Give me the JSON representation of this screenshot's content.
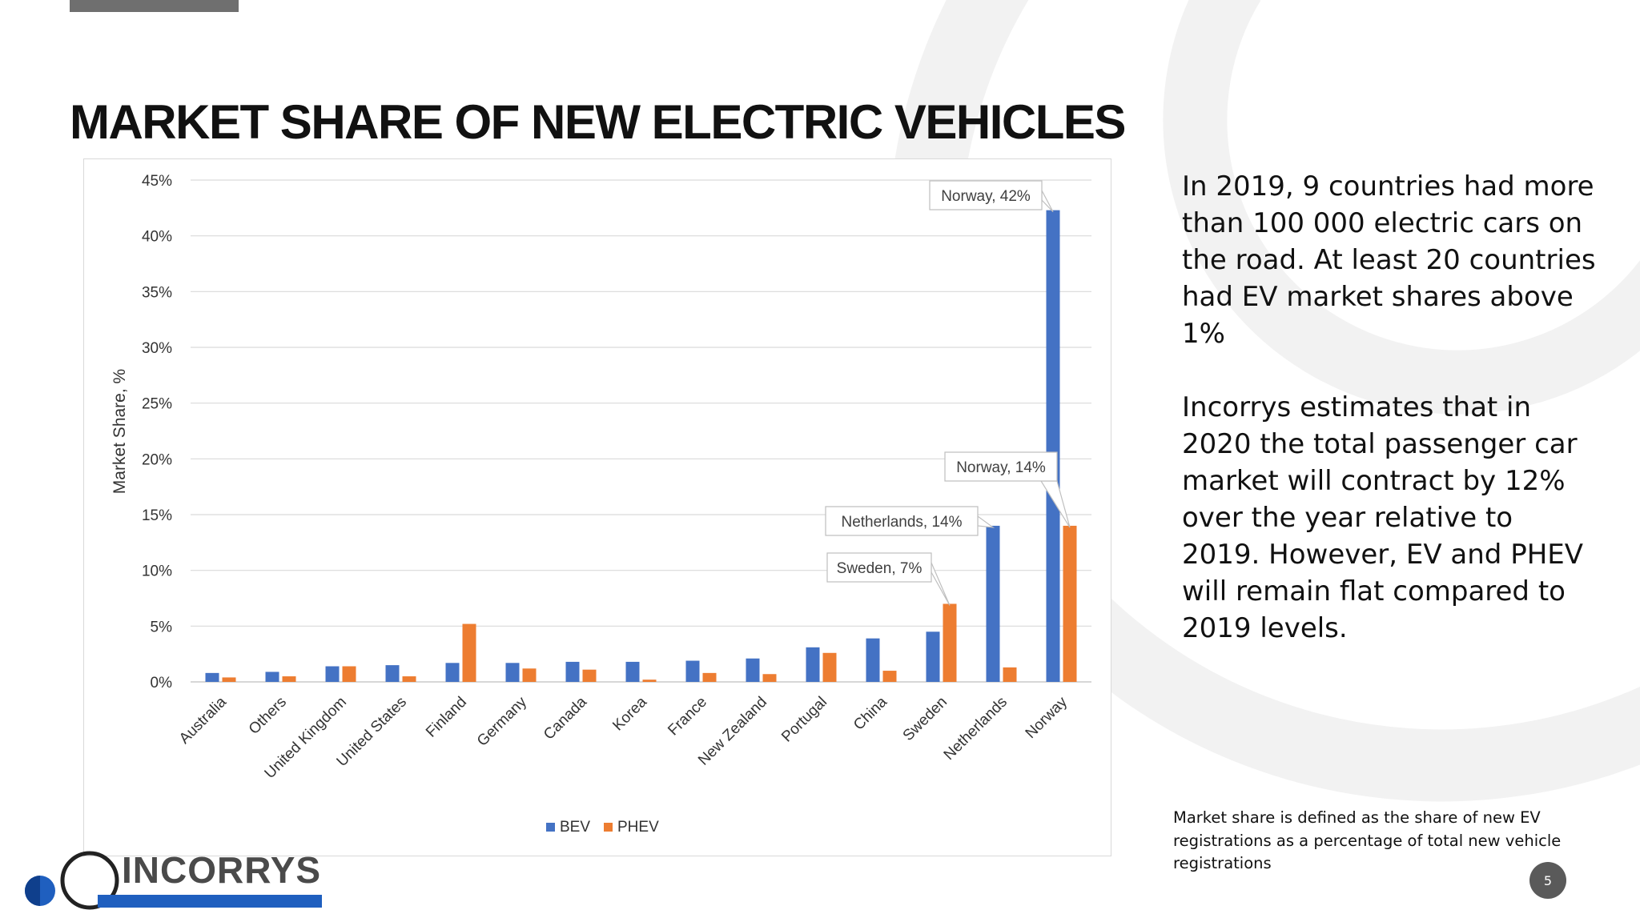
{
  "page": {
    "title": "MARKET SHARE OF NEW ELECTRIC VEHICLES",
    "paragraphs": [
      "In 2019, 9 countries had more than 100 000 electric cars on the road. At least 20 countries had EV market shares above 1%",
      "Incorrys estimates that in 2020 the total passenger car market will contract by 12% over the year relative to 2019. However, EV and PHEV will remain flat compared to 2019 levels."
    ],
    "footnote": "Market share is defined as the share of new EV registrations as a percentage of total new vehicle registrations",
    "page_number": "5",
    "logo_text": "INCORRYS",
    "colors": {
      "accent_blue": "#1f5fbf",
      "decor_gray": "#f2f2f2"
    }
  },
  "chart_data": {
    "type": "bar",
    "ylabel": "Market Share, %",
    "ylim": [
      0,
      45
    ],
    "yticks": [
      "0%",
      "5%",
      "10%",
      "15%",
      "20%",
      "25%",
      "30%",
      "35%",
      "40%",
      "45%"
    ],
    "grid": true,
    "legend_position": "bottom",
    "categories": [
      "Australia",
      "Others",
      "United Kingdom",
      "United States",
      "Finland",
      "Germany",
      "Canada",
      "Korea",
      "France",
      "New Zealand",
      "Portugal",
      "China",
      "Sweden",
      "Netherlands",
      "Norway"
    ],
    "series": [
      {
        "name": "BEV",
        "color": "#4472c4",
        "values": [
          0.8,
          0.9,
          1.4,
          1.5,
          1.7,
          1.7,
          1.8,
          1.8,
          1.9,
          2.1,
          3.1,
          3.9,
          4.5,
          14,
          42.3
        ]
      },
      {
        "name": "PHEV",
        "color": "#ed7d31",
        "values": [
          0.4,
          0.5,
          1.4,
          0.5,
          5.2,
          1.2,
          1.1,
          0.2,
          0.8,
          0.7,
          2.6,
          1.0,
          7,
          1.3,
          14
        ]
      }
    ],
    "annotations": [
      {
        "text": "Norway, 42%",
        "category": "Norway",
        "series": "BEV"
      },
      {
        "text": "Norway, 14%",
        "category": "Norway",
        "series": "PHEV"
      },
      {
        "text": "Netherlands, 14%",
        "category": "Netherlands",
        "series": "BEV"
      },
      {
        "text": "Sweden, 7%",
        "category": "Sweden",
        "series": "PHEV"
      }
    ]
  }
}
